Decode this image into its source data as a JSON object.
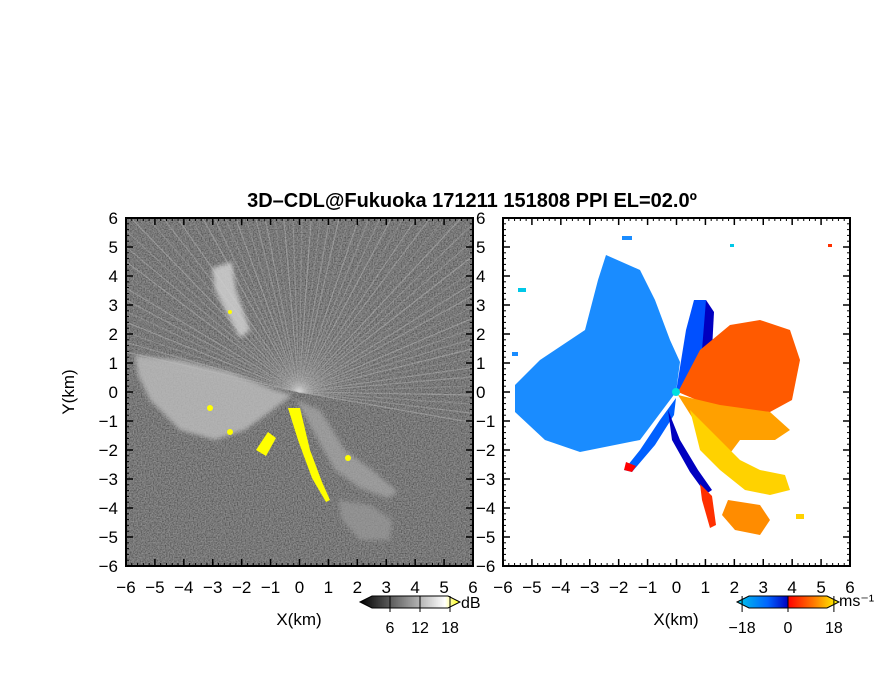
{
  "title": "3D–CDL@Fukuoka 171211 151808 PPI EL=02.0º",
  "chart_data": [
    {
      "type": "heatmap",
      "panel": "reflectivity",
      "xlabel": "X(km)",
      "ylabel": "Y(km)",
      "xlim": [
        -6,
        6
      ],
      "ylim": [
        -6,
        6
      ],
      "xticks": [
        "−6",
        "−5",
        "−4",
        "−3",
        "−2",
        "−1",
        "0",
        "1",
        "2",
        "3",
        "4",
        "5",
        "6"
      ],
      "yticks": [
        "6",
        "5",
        "4",
        "3",
        "2",
        "1",
        "0",
        "−1",
        "−2",
        "−3",
        "−4",
        "−5",
        "−6"
      ],
      "colorbar": {
        "unit": "dB",
        "ticks": [
          "6",
          "12",
          "18"
        ],
        "range": [
          0,
          20
        ],
        "colors": [
          "#000000",
          "#ffffff",
          "#ffff00"
        ]
      },
      "features": [
        {
          "name": "west-echo-band",
          "x_range": [
            -5.5,
            -1.0
          ],
          "y_range": [
            -1.8,
            0.8
          ],
          "intensity": "moderate"
        },
        {
          "name": "northwest-echo",
          "x_range": [
            -3.0,
            -2.0
          ],
          "y_range": [
            2.0,
            4.5
          ],
          "intensity": "moderate"
        },
        {
          "name": "south-echo-band",
          "x_range": [
            -1.5,
            3.5
          ],
          "y_range": [
            -5.5,
            -0.5
          ],
          "intensity": "strong"
        }
      ]
    },
    {
      "type": "heatmap",
      "panel": "doppler-velocity",
      "xlabel": "X(km)",
      "xlim": [
        -6,
        6
      ],
      "ylim": [
        -6,
        6
      ],
      "xticks": [
        "−6",
        "−5",
        "−4",
        "−3",
        "−2",
        "−1",
        "0",
        "1",
        "2",
        "3",
        "4",
        "5",
        "6"
      ],
      "yticks": [
        "6",
        "5",
        "4",
        "3",
        "2",
        "1",
        "0",
        "−1",
        "−2",
        "−3",
        "−4",
        "−5",
        "−6"
      ],
      "colorbar": {
        "unit": "ms⁻¹",
        "ticks": [
          "−18",
          "0",
          "18"
        ],
        "range": [
          -20,
          20
        ],
        "colors": [
          "#00c8e8",
          "#0064ff",
          "#0000c0",
          "#ff0000",
          "#ff7800",
          "#ffff00"
        ]
      },
      "features": [
        {
          "name": "approaching-west",
          "x_range": [
            -5.5,
            -0.2
          ],
          "y_range": [
            -2.0,
            4.5
          ],
          "velocity": -10
        },
        {
          "name": "receding-east",
          "x_range": [
            0.2,
            4.2
          ],
          "y_range": [
            -2.5,
            2.8
          ],
          "velocity": 10
        },
        {
          "name": "receding-south",
          "x_range": [
            1.0,
            4.5
          ],
          "y_range": [
            -5.0,
            -2.0
          ],
          "velocity": 14
        }
      ]
    }
  ]
}
